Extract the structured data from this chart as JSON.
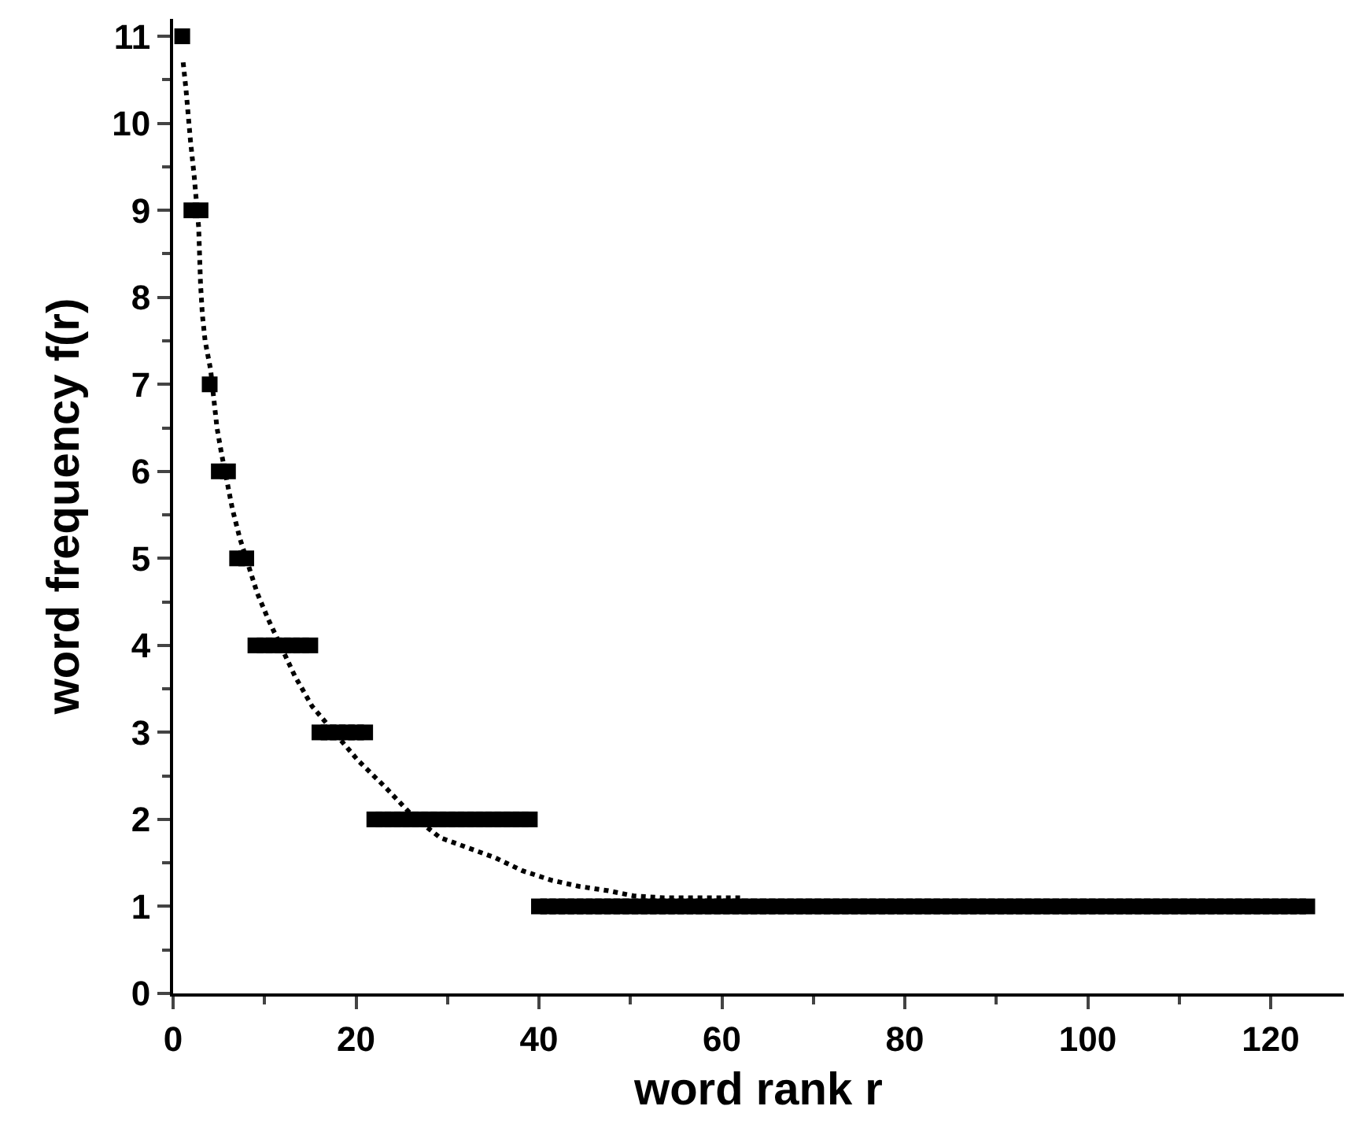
{
  "chart_data": {
    "type": "scatter",
    "xlabel": "word rank r",
    "ylabel": "word frequency f(r)",
    "xlim": [
      0,
      128
    ],
    "xticks": [
      0,
      20,
      40,
      60,
      80,
      100,
      120
    ],
    "ylim": [
      0,
      11.2
    ],
    "yticks": [
      0,
      1,
      2,
      3,
      4,
      5,
      6,
      7,
      8,
      9,
      10,
      11
    ],
    "series": [
      {
        "color": "#000000",
        "marker": "square",
        "x": [
          1,
          2,
          3,
          4,
          5,
          6,
          7,
          8,
          9,
          10,
          11,
          12,
          13,
          14,
          15,
          16,
          17,
          18,
          19,
          20,
          21,
          22,
          23,
          24,
          25,
          26,
          27,
          28,
          29,
          30,
          31,
          32,
          33,
          34,
          35,
          36,
          37,
          38,
          39,
          40,
          41,
          42,
          43,
          44,
          45,
          46,
          47,
          48,
          49,
          50,
          51,
          52,
          53,
          54,
          55,
          56,
          57,
          58,
          59,
          60,
          61,
          62,
          63,
          64,
          65,
          66,
          67,
          68,
          69,
          70,
          71,
          72,
          73,
          74,
          75,
          76,
          77,
          78,
          79,
          80,
          81,
          82,
          83,
          84,
          85,
          86,
          87,
          88,
          89,
          90,
          91,
          92,
          93,
          94,
          95,
          96,
          97,
          98,
          99,
          100,
          101,
          102,
          103,
          104,
          105,
          106,
          107,
          108,
          109,
          110,
          111,
          112,
          113,
          114,
          115,
          116,
          117,
          118,
          119,
          120,
          121,
          122,
          123,
          124
        ],
        "values": [
          11,
          9,
          9,
          7,
          6,
          6,
          5,
          5,
          4,
          4,
          4,
          4,
          4,
          4,
          4,
          3,
          3,
          3,
          3,
          3,
          3,
          2,
          2,
          2,
          2,
          2,
          2,
          2,
          2,
          2,
          2,
          2,
          2,
          2,
          2,
          2,
          2,
          2,
          2,
          1,
          1,
          1,
          1,
          1,
          1,
          1,
          1,
          1,
          1,
          1,
          1,
          1,
          1,
          1,
          1,
          1,
          1,
          1,
          1,
          1,
          1,
          1,
          1,
          1,
          1,
          1,
          1,
          1,
          1,
          1,
          1,
          1,
          1,
          1,
          1,
          1,
          1,
          1,
          1,
          1,
          1,
          1,
          1,
          1,
          1,
          1,
          1,
          1,
          1,
          1,
          1,
          1,
          1,
          1,
          1,
          1,
          1,
          1,
          1,
          1,
          1,
          1,
          1,
          1,
          1,
          1,
          1,
          1,
          1,
          1,
          1,
          1,
          1,
          1,
          1,
          1,
          1,
          1,
          1,
          1,
          1,
          1,
          1,
          1
        ]
      },
      {
        "type": "line",
        "color": "#000000",
        "line_style": "dotted",
        "x": [
          1.1,
          1.4,
          1.9,
          2.3,
          2.8,
          3.0,
          3.2,
          3.5,
          4.1,
          4.8,
          5.3,
          6.5,
          7.3,
          9.2,
          10.4,
          13.3,
          15.2,
          20.2,
          23.2,
          26.2,
          29.2,
          35.2,
          38.2,
          41.4,
          44.4,
          47.6,
          50.4,
          53.6,
          62.5
        ],
        "values": [
          10.7,
          10.4,
          9.8,
          9.4,
          8.8,
          8.15,
          7.8,
          7.5,
          7.17,
          6.5,
          6.2,
          5.56,
          5.23,
          4.6,
          4.3,
          3.65,
          3.3,
          2.68,
          2.37,
          2.04,
          1.79,
          1.56,
          1.41,
          1.3,
          1.23,
          1.18,
          1.12,
          1.1,
          1.1
        ]
      }
    ]
  }
}
